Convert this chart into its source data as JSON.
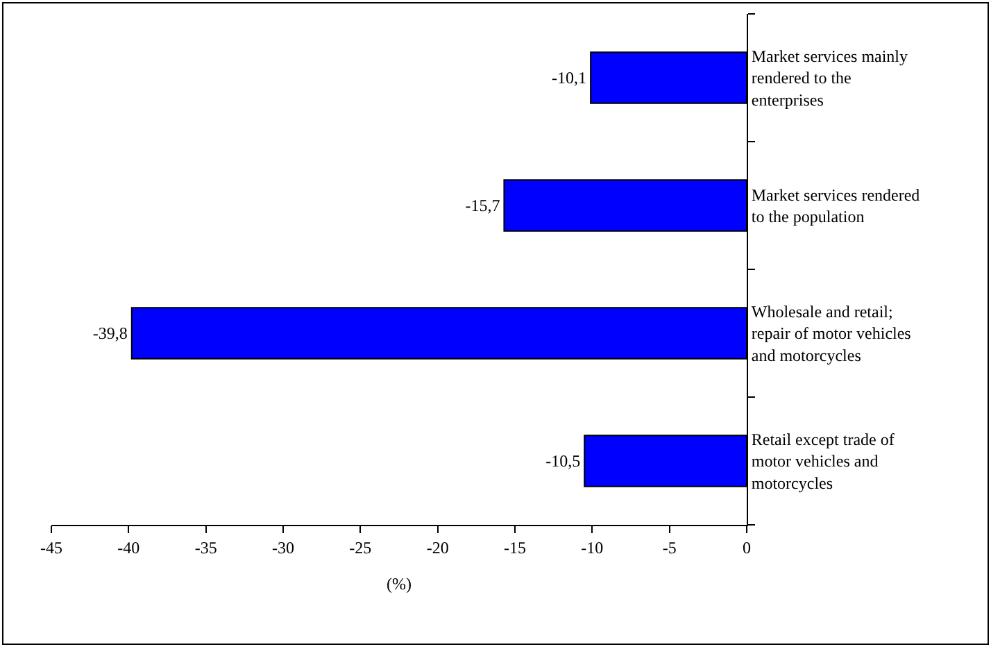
{
  "chart_data": {
    "type": "bar",
    "orientation": "horizontal",
    "xlabel": "(%)",
    "categories": [
      "Market services mainly\nrendered to the\nenterprises",
      "Market services rendered\nto the population",
      "Wholesale and retail;\nrepair of motor vehicles\nand motorcycles",
      "Retail except trade of\nmotor vehicles and\nmotorcycles"
    ],
    "values": [
      -10.1,
      -15.7,
      -39.8,
      -10.5
    ],
    "value_labels": [
      "-10,1",
      "-15,7",
      "-39,8",
      "-10,5"
    ],
    "color": "#0000ff",
    "xlim": [
      -45,
      0
    ],
    "xticks": [
      -45,
      -40,
      -35,
      -30,
      -25,
      -20,
      -15,
      -10,
      -5,
      0
    ]
  }
}
